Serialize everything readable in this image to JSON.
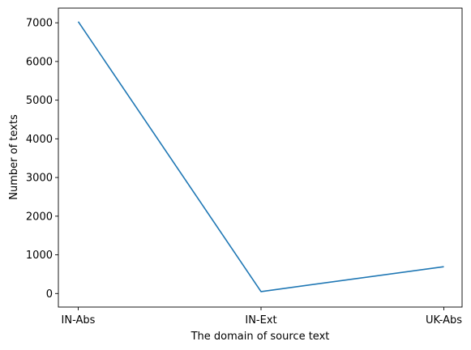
{
  "chart_data": {
    "type": "line",
    "xlabel": "The domain of source text",
    "ylabel": "Number of texts",
    "categories": [
      "IN-Abs",
      "IN-Ext",
      "UK-Abs"
    ],
    "series": [
      {
        "values": [
          7030,
          50,
          693
        ],
        "color": "#1f77b4"
      }
    ],
    "ylim": [
      -350,
      7380
    ],
    "yticks": [
      0,
      1000,
      2000,
      3000,
      4000,
      5000,
      6000,
      7000
    ],
    "ytick_labels": [
      "0",
      "1000",
      "2000",
      "3000",
      "4000",
      "5000",
      "6000",
      "7000"
    ],
    "grid": false,
    "legend": false
  }
}
